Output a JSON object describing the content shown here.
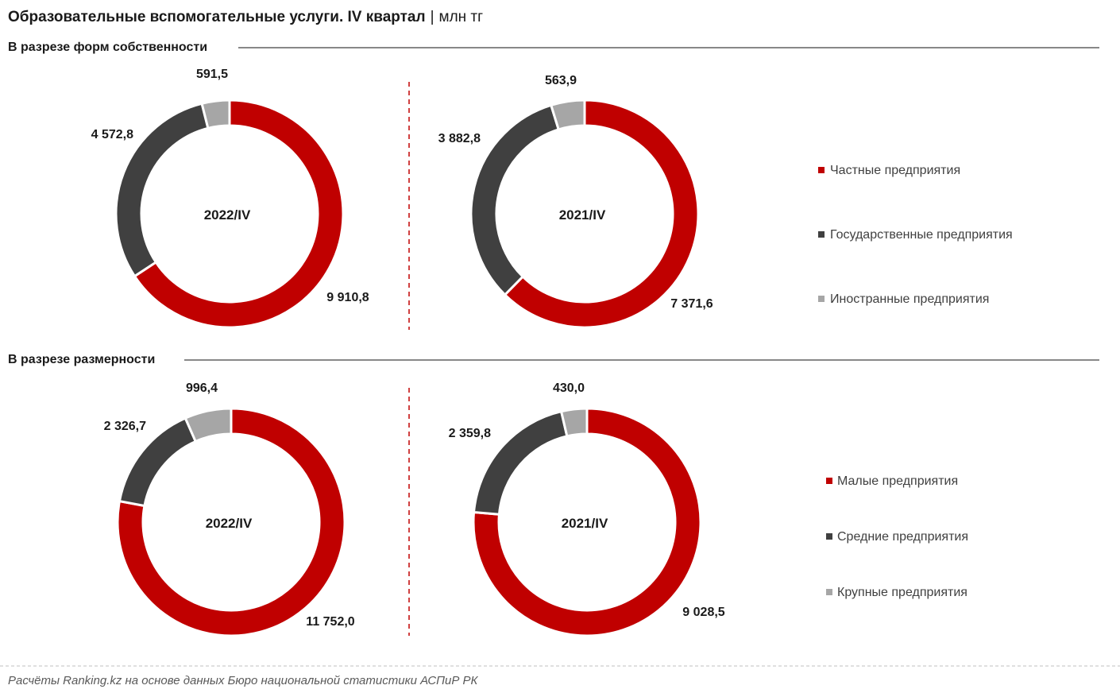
{
  "header": {
    "title": "Образовательные вспомогательные услуги. IV квартал",
    "separator": "|",
    "unit": "млн тг"
  },
  "colors": {
    "red": "#C00000",
    "dark": "#404040",
    "grey": "#A6A6A6",
    "divider": "#C00000"
  },
  "chart_data": [
    {
      "type": "pie",
      "section": "В разрезе форм собственности",
      "center_label": "2022/IV",
      "categories": [
        "Частные предприятия",
        "Государственные предприятия",
        "Иностранные предприятия"
      ],
      "values": [
        9910.8,
        4572.8,
        591.5
      ],
      "value_labels": [
        "9 910,8",
        "4 572,8",
        "591,5"
      ]
    },
    {
      "type": "pie",
      "section": "В разрезе форм собственности",
      "center_label": "2021/IV",
      "categories": [
        "Частные предприятия",
        "Государственные предприятия",
        "Иностранные предприятия"
      ],
      "values": [
        7371.6,
        3882.8,
        563.9
      ],
      "value_labels": [
        "7 371,6",
        "3 882,8",
        "563,9"
      ]
    },
    {
      "type": "pie",
      "section": "В разрезе размерности",
      "center_label": "2022/IV",
      "categories": [
        "Малые предприятия",
        "Средние предприятия",
        "Крупные предприятия"
      ],
      "values": [
        11752.0,
        2326.7,
        996.4
      ],
      "value_labels": [
        "11 752,0",
        "2 326,7",
        "996,4"
      ]
    },
    {
      "type": "pie",
      "section": "В разрезе размерности",
      "center_label": "2021/IV",
      "categories": [
        "Малые предприятия",
        "Средние предприятия",
        "Крупные предприятия"
      ],
      "values": [
        9028.5,
        2359.8,
        430.0
      ],
      "value_labels": [
        "9 028,5",
        "2 359,8",
        "430,0"
      ]
    }
  ],
  "sections": [
    {
      "title": "В разрезе форм собственности",
      "legend": [
        "Частные предприятия",
        "Государственные предприятия",
        "Иностранные предприятия"
      ]
    },
    {
      "title": "В разрезе размерности",
      "legend": [
        "Малые предприятия",
        "Средние предприятия",
        "Крупные предприятия"
      ]
    }
  ],
  "footer": {
    "source": "Расчёты Ranking.kz на основе данных Бюро национальной статистики АСПиР РК"
  }
}
